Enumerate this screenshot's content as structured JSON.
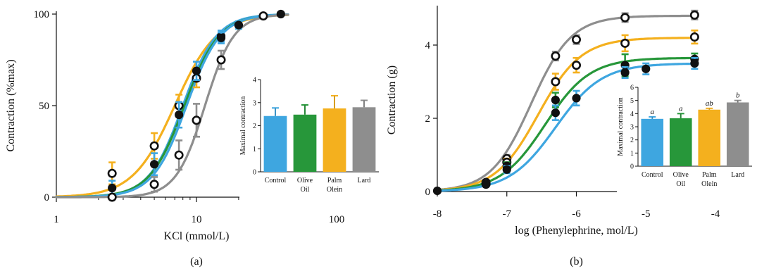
{
  "colors": {
    "Control": "#3ea6e0",
    "Olive Oil": "#27973a",
    "Palm Olein": "#f4b01e",
    "Lard": "#8e8e8e",
    "axis": "#111111"
  },
  "chart_data": [
    {
      "id": "main_a",
      "type": "line",
      "panel_label": "(a)",
      "xlabel": "KCl (mmol/L)",
      "ylabel": "Contraction (%max)",
      "xscale": "log",
      "xlim": [
        1,
        100
      ],
      "ylim": [
        0,
        100
      ],
      "xticks": [
        1,
        10,
        100
      ],
      "xticklabels": [
        "1",
        "10",
        "100"
      ],
      "yticks": [
        0,
        50,
        100
      ],
      "yticklabels": [
        "0",
        "50",
        "100"
      ],
      "series": [
        {
          "color_key": "Palm Olein",
          "ec50": 7,
          "hill": 2.9,
          "points": [
            {
              "x": 2.5,
              "y": 13,
              "err": 6,
              "marker": "open"
            },
            {
              "x": 5,
              "y": 28,
              "err": 7,
              "marker": "open"
            },
            {
              "x": 7.5,
              "y": 50,
              "err": 6,
              "marker": "open"
            },
            {
              "x": 10,
              "y": 65,
              "err": 5,
              "marker": "open"
            }
          ]
        },
        {
          "color_key": "Control",
          "ec50": 8,
          "hill": 3.6,
          "points": [
            {
              "x": 15,
              "y": 88,
              "err": 3,
              "marker": "filled"
            }
          ]
        },
        {
          "color_key": "Olive Oil",
          "ec50": 8.2,
          "hill": 3.5,
          "points": [
            {
              "x": 20,
              "y": 94,
              "err": 2,
              "marker": "filled"
            }
          ]
        },
        {
          "color_key": "Control",
          "ec50": 8.5,
          "hill": 3.6,
          "points": [
            {
              "x": 2.5,
              "y": 5,
              "err": 4,
              "marker": "filled"
            },
            {
              "x": 5,
              "y": 18,
              "err": 6,
              "marker": "filled"
            },
            {
              "x": 7.5,
              "y": 45,
              "err": 7,
              "marker": "filled"
            },
            {
              "x": 10,
              "y": 69,
              "err": 5,
              "marker": "filled"
            },
            {
              "x": 15,
              "y": 87,
              "err": 3,
              "marker": "filled"
            },
            {
              "x": 20,
              "y": 94,
              "err": 2,
              "marker": "filled"
            },
            {
              "x": 30,
              "y": 99,
              "err": 1,
              "marker": "filled"
            },
            {
              "x": 40,
              "y": 100,
              "err": 0,
              "marker": "filled"
            }
          ]
        },
        {
          "color_key": "Lard",
          "ec50": 11.5,
          "hill": 4.2,
          "points": [
            {
              "x": 2.5,
              "y": 0,
              "err": 1,
              "marker": "open"
            },
            {
              "x": 5,
              "y": 7,
              "err": 4,
              "marker": "open"
            },
            {
              "x": 7.5,
              "y": 23,
              "err": 8,
              "marker": "open"
            },
            {
              "x": 10,
              "y": 42,
              "err": 9,
              "marker": "open"
            },
            {
              "x": 15,
              "y": 75,
              "err": 5,
              "marker": "open"
            },
            {
              "x": 30,
              "y": 99,
              "err": 1,
              "marker": "open"
            }
          ]
        }
      ]
    },
    {
      "id": "inset_a",
      "type": "bar",
      "ylabel": "Maximal contraction",
      "ylim": [
        0,
        4
      ],
      "yticks": [
        0,
        1,
        2,
        3,
        4
      ],
      "yticklabels": [
        "0",
        "1",
        "2",
        "3",
        "4"
      ],
      "categories": [
        "Control",
        "Olive Oil",
        "Palm Olein",
        "Lard"
      ],
      "category_lines": [
        [
          "Control"
        ],
        [
          "Olive",
          "Oil"
        ],
        [
          "Palm",
          "Olein"
        ],
        [
          "Lard"
        ]
      ],
      "values": [
        2.42,
        2.48,
        2.75,
        2.8
      ],
      "errors": [
        0.35,
        0.42,
        0.55,
        0.3
      ],
      "sig_letters": [
        "",
        "",
        "",
        ""
      ]
    },
    {
      "id": "main_b",
      "type": "line",
      "panel_label": "(b)",
      "xlabel": "log (Phenylephrine, mol/L)",
      "ylabel": "Contraction (g)",
      "xlim": [
        -8,
        -4
      ],
      "ylim": [
        0,
        5
      ],
      "xticks": [
        -8,
        -7,
        -6,
        -5,
        -4
      ],
      "xticklabels": [
        "-8",
        "-7",
        "-6",
        "-5",
        "-4"
      ],
      "yticks": [
        0,
        2,
        4
      ],
      "yticklabels": [
        "0",
        "2",
        "4"
      ],
      "series": [
        {
          "color_key": "Lard",
          "top": 4.8,
          "ec50": -6.65,
          "hill": 1.5,
          "points": [
            {
              "x": -7.3,
              "y": 0.25,
              "err": 0.05,
              "marker": "open"
            },
            {
              "x": -7,
              "y": 0.9,
              "err": 0.1,
              "marker": "open"
            },
            {
              "x": -6.3,
              "y": 3.7,
              "err": 0.12,
              "marker": "open"
            },
            {
              "x": -6,
              "y": 4.15,
              "err": 0.12,
              "marker": "open"
            },
            {
              "x": -5.3,
              "y": 4.75,
              "err": 0.12,
              "marker": "open"
            },
            {
              "x": -4.3,
              "y": 4.82,
              "err": 0.12,
              "marker": "open"
            }
          ]
        },
        {
          "color_key": "Palm Olein",
          "top": 4.2,
          "ec50": -6.55,
          "hill": 1.4,
          "points": [
            {
              "x": -7.3,
              "y": 0.2,
              "err": 0.05,
              "marker": "open"
            },
            {
              "x": -7,
              "y": 0.8,
              "err": 0.1,
              "marker": "open"
            },
            {
              "x": -6.3,
              "y": 3.0,
              "err": 0.22,
              "marker": "open"
            },
            {
              "x": -6,
              "y": 3.45,
              "err": 0.2,
              "marker": "open"
            },
            {
              "x": -5.3,
              "y": 4.05,
              "err": 0.22,
              "marker": "open"
            },
            {
              "x": -4.3,
              "y": 4.22,
              "err": 0.18,
              "marker": "open"
            }
          ]
        },
        {
          "color_key": "Olive Oil",
          "top": 3.65,
          "ec50": -6.45,
          "hill": 1.35,
          "points": [
            {
              "x": -7.3,
              "y": 0.2,
              "err": 0.05,
              "marker": "filled"
            },
            {
              "x": -7,
              "y": 0.7,
              "err": 0.1,
              "marker": "filled"
            },
            {
              "x": -6.3,
              "y": 2.5,
              "err": 0.2,
              "marker": "filled"
            },
            {
              "x": -5.3,
              "y": 3.45,
              "err": 0.3,
              "marker": "filled"
            },
            {
              "x": -4.3,
              "y": 3.62,
              "err": 0.15,
              "marker": "filled"
            }
          ]
        },
        {
          "color_key": "Control",
          "top": 3.5,
          "ec50": -6.3,
          "hill": 1.3,
          "points": [
            {
              "x": -8,
              "y": 0.02,
              "err": 0.03,
              "marker": "filled"
            },
            {
              "x": -7.3,
              "y": 0.2,
              "err": 0.05,
              "marker": "filled"
            },
            {
              "x": -7,
              "y": 0.6,
              "err": 0.1,
              "marker": "filled"
            },
            {
              "x": -6.3,
              "y": 2.15,
              "err": 0.2,
              "marker": "filled"
            },
            {
              "x": -6,
              "y": 2.55,
              "err": 0.2,
              "marker": "filled"
            },
            {
              "x": -5.3,
              "y": 3.25,
              "err": 0.15,
              "marker": "filled"
            },
            {
              "x": -5,
              "y": 3.35,
              "err": 0.15,
              "marker": "filled"
            },
            {
              "x": -4.3,
              "y": 3.5,
              "err": 0.15,
              "marker": "filled"
            }
          ]
        }
      ]
    },
    {
      "id": "inset_b",
      "type": "bar",
      "ylabel": "Maximal contraction",
      "ylim": [
        0,
        6
      ],
      "yticks": [
        0,
        1,
        2,
        3,
        4,
        5,
        6
      ],
      "yticklabels": [
        "0",
        "1",
        "2",
        "3",
        "4",
        "5",
        "6"
      ],
      "categories": [
        "Control",
        "Olive Oil",
        "Palm Olein",
        "Lard"
      ],
      "category_lines": [
        [
          "Control"
        ],
        [
          "Olive",
          "Oil"
        ],
        [
          "Palm",
          "Olein"
        ],
        [
          "Lard"
        ]
      ],
      "values": [
        3.6,
        3.65,
        4.3,
        4.85
      ],
      "errors": [
        0.15,
        0.35,
        0.1,
        0.15
      ],
      "sig_letters": [
        "a",
        "a",
        "ab",
        "b"
      ]
    }
  ]
}
